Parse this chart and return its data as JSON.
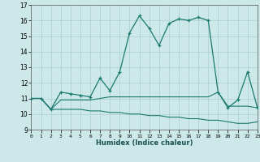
{
  "title": "",
  "xlabel": "Humidex (Indice chaleur)",
  "x": [
    0,
    1,
    2,
    3,
    4,
    5,
    6,
    7,
    8,
    9,
    10,
    11,
    12,
    13,
    14,
    15,
    16,
    17,
    18,
    19,
    20,
    21,
    22,
    23
  ],
  "line1": [
    11.0,
    11.0,
    10.3,
    11.4,
    11.3,
    11.2,
    11.1,
    12.3,
    11.5,
    12.7,
    15.2,
    16.3,
    15.5,
    14.4,
    15.8,
    16.1,
    16.0,
    16.2,
    16.0,
    11.4,
    10.4,
    10.9,
    12.7,
    10.4
  ],
  "line2": [
    11.0,
    11.0,
    10.3,
    10.9,
    10.9,
    10.9,
    10.9,
    11.0,
    11.1,
    11.1,
    11.1,
    11.1,
    11.1,
    11.1,
    11.1,
    11.1,
    11.1,
    11.1,
    11.1,
    11.4,
    10.5,
    10.5,
    10.5,
    10.4
  ],
  "line3": [
    11.0,
    11.0,
    10.3,
    10.3,
    10.3,
    10.3,
    10.2,
    10.2,
    10.1,
    10.1,
    10.0,
    10.0,
    9.9,
    9.9,
    9.8,
    9.8,
    9.7,
    9.7,
    9.6,
    9.6,
    9.5,
    9.4,
    9.4,
    9.5
  ],
  "line_color": "#1a7a6e",
  "bg_color": "#cce8e8",
  "grid_color": "#aacfcf",
  "ylim": [
    9,
    17
  ],
  "yticks": [
    9,
    10,
    11,
    12,
    13,
    14,
    15,
    16,
    17
  ],
  "xlim": [
    0,
    23
  ]
}
